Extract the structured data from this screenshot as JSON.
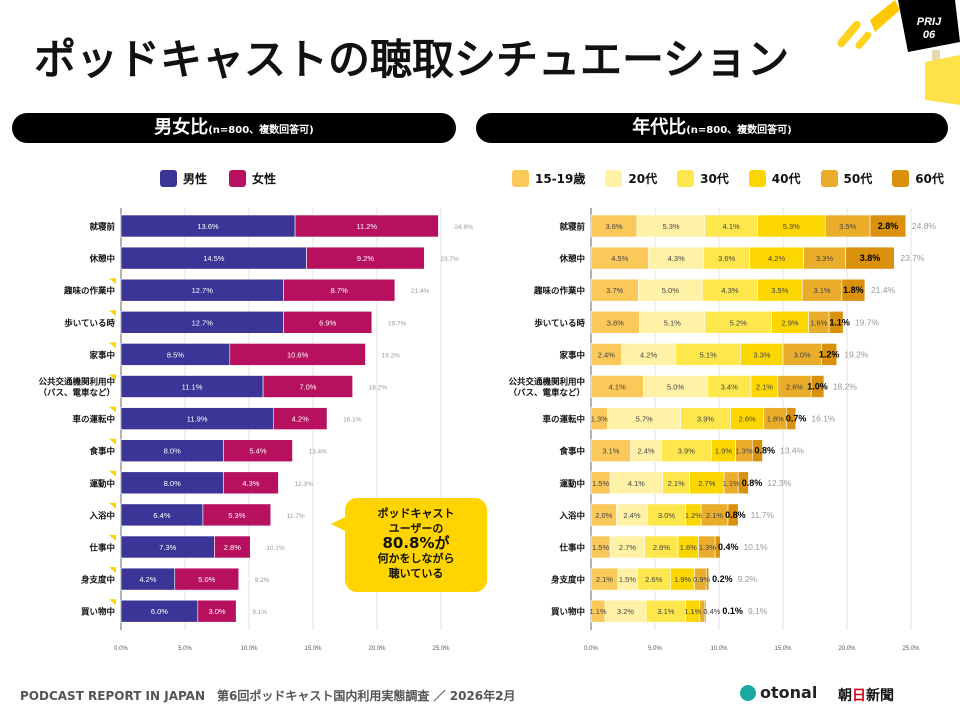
{
  "title": "ポッドキャストの聴取シチュエーション",
  "badge": {
    "line1": "PRIJ",
    "line2": "06"
  },
  "callout": {
    "l1": "ポッドキャスト",
    "l2": "ユーザーの",
    "l3": "80.8%が",
    "l4": "何かをしながら",
    "l5": "聴いている"
  },
  "footer": {
    "report": "PODCAST REPORT IN JAPAN　第6回ポッドキャスト国内利用実態調査 ／ 2026年2月",
    "otonal": "otonal",
    "asahi_a": "朝",
    "asahi_b": "日",
    "asahi_c": "新聞"
  },
  "chart_data": [
    {
      "type": "bar",
      "stacked": true,
      "orientation": "horizontal",
      "title": "男女比",
      "subtitle": "(n=800、複数回答可)",
      "categories": [
        "就寝前",
        "休憩中",
        "趣味の作業中",
        "歩いている時",
        "家事中",
        "公共交通機関利用中\n（バス、電車など）",
        "車の運転中",
        "食事中",
        "運動中",
        "入浴中",
        "仕事中",
        "身支度中",
        "買い物中"
      ],
      "series": [
        {
          "name": "男性",
          "color": "#3a3596",
          "values": [
            13.6,
            14.5,
            12.7,
            12.7,
            8.5,
            11.1,
            11.9,
            8.0,
            8.0,
            6.4,
            7.3,
            4.2,
            6.0
          ]
        },
        {
          "name": "女性",
          "color": "#b7105e",
          "values": [
            11.2,
            9.2,
            8.7,
            6.9,
            10.6,
            7.0,
            4.2,
            5.4,
            4.3,
            5.3,
            2.8,
            5.0,
            3.0
          ]
        }
      ],
      "totals": [
        24.8,
        23.7,
        21.4,
        19.7,
        19.2,
        18.2,
        16.1,
        13.4,
        12.3,
        11.7,
        10.1,
        9.2,
        9.1
      ],
      "xticks": [
        "0.0%",
        "5.0%",
        "10.0%",
        "15.0%",
        "20.0%",
        "25.0%"
      ],
      "xlim": [
        0,
        25
      ],
      "grid": true,
      "legend": "top"
    },
    {
      "type": "bar",
      "stacked": true,
      "orientation": "horizontal",
      "title": "年代比",
      "subtitle": "(n=800、複数回答可)",
      "categories": [
        "就寝前",
        "休憩中",
        "趣味の作業中",
        "歩いている時",
        "家事中",
        "公共交通機関利用中\n（バス、電車など）",
        "車の運転中",
        "食事中",
        "運動中",
        "入浴中",
        "仕事中",
        "身支度中",
        "買い物中"
      ],
      "series": [
        {
          "name": "15-19歳",
          "color": "#fbc85a",
          "values": [
            3.6,
            4.5,
            3.7,
            3.8,
            2.4,
            4.1,
            1.3,
            3.1,
            1.5,
            2.0,
            1.5,
            2.1,
            1.1
          ]
        },
        {
          "name": "20代",
          "color": "#fff2a6",
          "values": [
            5.3,
            4.3,
            5.0,
            5.1,
            4.2,
            5.0,
            5.7,
            2.4,
            4.1,
            2.4,
            2.7,
            1.5,
            3.2
          ]
        },
        {
          "name": "30代",
          "color": "#fde74c",
          "values": [
            4.1,
            3.6,
            4.3,
            5.2,
            5.1,
            3.4,
            3.9,
            3.9,
            2.1,
            3.0,
            2.6,
            2.6,
            3.1
          ]
        },
        {
          "name": "40代",
          "color": "#fcd600",
          "values": [
            5.3,
            4.2,
            3.5,
            2.9,
            3.3,
            2.1,
            2.6,
            1.9,
            2.7,
            1.2,
            1.6,
            1.9,
            1.1
          ]
        },
        {
          "name": "50代",
          "color": "#e9ad2b",
          "values": [
            3.5,
            3.3,
            3.1,
            1.6,
            3.0,
            2.6,
            1.8,
            1.3,
            1.1,
            2.1,
            1.3,
            0.9,
            0.4
          ]
        },
        {
          "name": "60代",
          "color": "#da910e",
          "values": [
            2.8,
            3.8,
            1.8,
            1.1,
            1.2,
            1.0,
            0.7,
            0.8,
            0.8,
            0.8,
            0.4,
            0.2,
            0.1
          ]
        }
      ],
      "totals": [
        24.8,
        23.7,
        21.4,
        19.7,
        19.2,
        18.2,
        16.1,
        13.4,
        12.3,
        11.7,
        10.1,
        9.2,
        9.1
      ],
      "xticks": [
        "0.0%",
        "5.0%",
        "10.0%",
        "15.0%",
        "20.0%",
        "25.0%"
      ],
      "xlim": [
        0,
        25
      ],
      "grid": true,
      "legend": "top"
    }
  ]
}
